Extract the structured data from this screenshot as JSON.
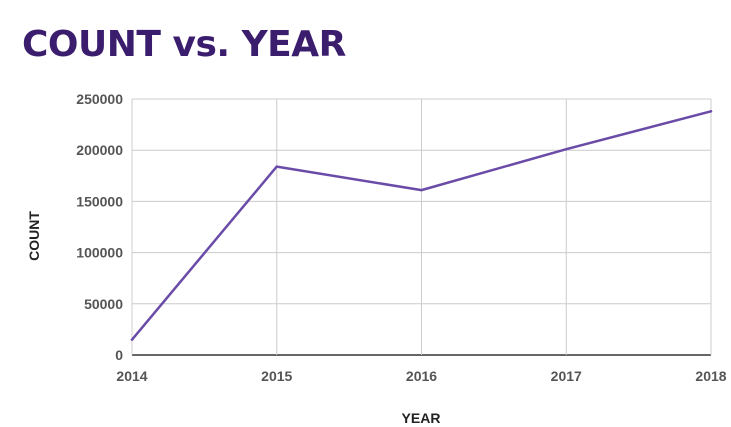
{
  "chart_data": {
    "type": "line",
    "title": "COUNT vs. YEAR",
    "xlabel": "YEAR",
    "ylabel": "COUNT",
    "x": [
      "2014",
      "2015",
      "2016",
      "2017",
      "2018"
    ],
    "series": [
      {
        "values": [
          15000,
          184000,
          161000,
          201000,
          238000
        ]
      }
    ],
    "ylim": [
      0,
      250000
    ],
    "yticks": [
      "0",
      "50000",
      "100000",
      "150000",
      "200000",
      "250000"
    ],
    "grid": true,
    "line_color": "#6a4ca8",
    "title_color": "#3b1d6e"
  }
}
